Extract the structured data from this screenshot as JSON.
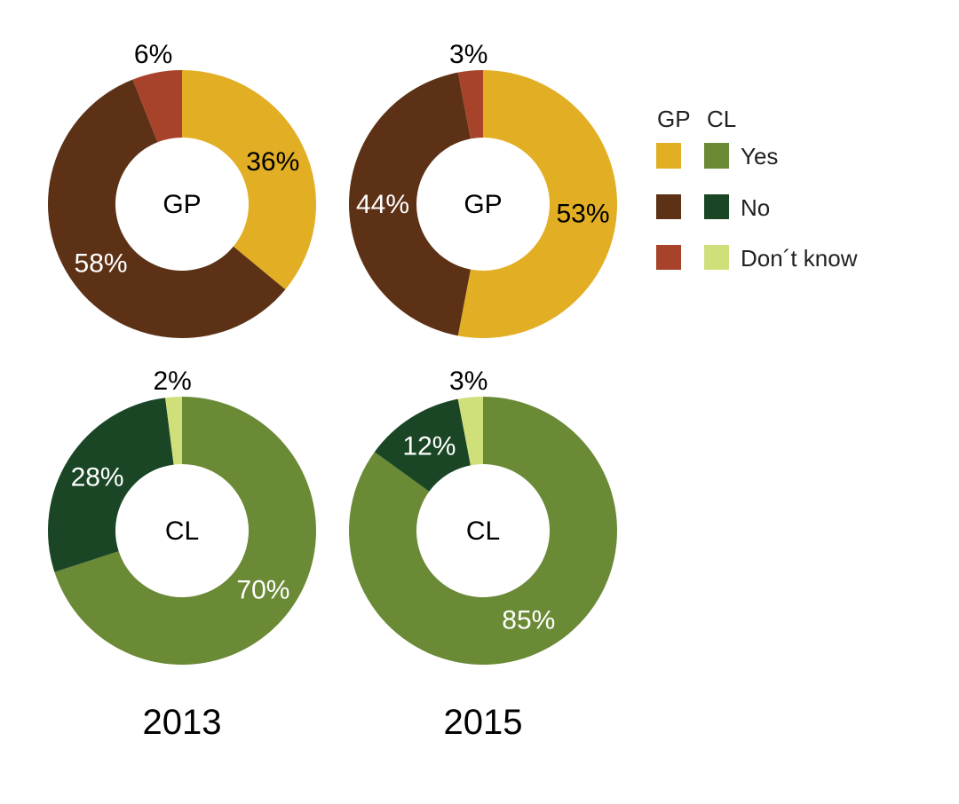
{
  "chart_data": [
    {
      "type": "pie",
      "center_label": "GP",
      "year": "2013",
      "categories": [
        "Yes",
        "No",
        "Don´t know"
      ],
      "values": [
        36,
        58,
        6
      ],
      "labels": [
        "36%",
        "58%",
        "6%"
      ],
      "colors": [
        "#E2AE24",
        "#5C3116",
        "#A8432B"
      ]
    },
    {
      "type": "pie",
      "center_label": "GP",
      "year": "2015",
      "categories": [
        "Yes",
        "No",
        "Don´t know"
      ],
      "values": [
        53,
        44,
        3
      ],
      "labels": [
        "53%",
        "44%",
        "3%"
      ],
      "colors": [
        "#E2AE24",
        "#5C3116",
        "#A8432B"
      ]
    },
    {
      "type": "pie",
      "center_label": "CL",
      "year": "2013",
      "categories": [
        "Yes",
        "No",
        "Don´t know"
      ],
      "values": [
        70,
        28,
        2
      ],
      "labels": [
        "70%",
        "28%",
        "2%"
      ],
      "colors": [
        "#6A8A36",
        "#1A4626",
        "#CFE07A"
      ]
    },
    {
      "type": "pie",
      "center_label": "CL",
      "year": "2015",
      "categories": [
        "Yes",
        "No",
        "Don´t know"
      ],
      "values": [
        85,
        12,
        3
      ],
      "labels": [
        "85%",
        "12%",
        "3%"
      ],
      "colors": [
        "#6A8A36",
        "#1A4626",
        "#CFE07A"
      ]
    }
  ],
  "years": [
    "2013",
    "2015"
  ],
  "legend": {
    "headers": [
      "GP",
      "CL"
    ],
    "entries": [
      {
        "label": "Yes",
        "gp_color": "#E2AE24",
        "cl_color": "#6A8A36"
      },
      {
        "label": "No",
        "gp_color": "#5C3116",
        "cl_color": "#1A4626"
      },
      {
        "label": "Don´t know",
        "gp_color": "#A8432B",
        "cl_color": "#CFE07A"
      }
    ]
  }
}
